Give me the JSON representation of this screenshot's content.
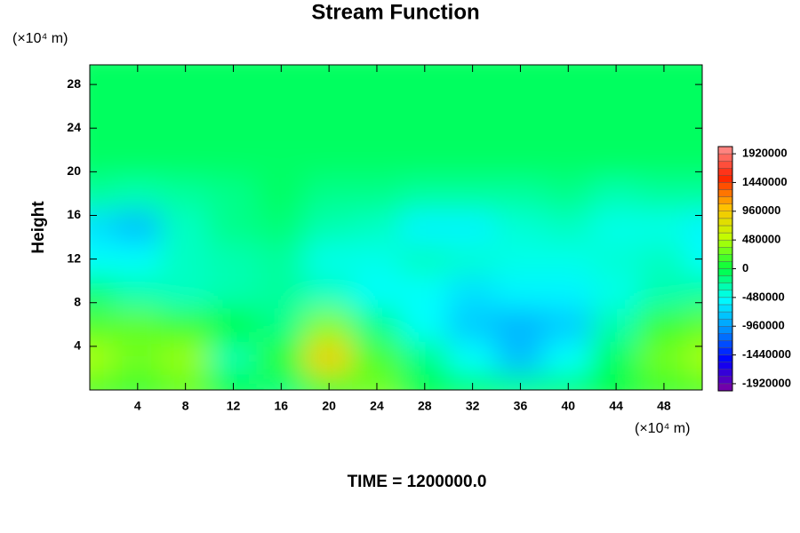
{
  "chart_data": {
    "type": "contour",
    "title": "Stream Function",
    "ylabel": "Height",
    "y_unit": "(×10⁴ m)",
    "x_unit": "(×10⁴ m)",
    "annotation": "TIME = 1200000.0",
    "xlim": [
      0,
      51.2
    ],
    "ylim": [
      0,
      29.8
    ],
    "xticks": [
      4,
      8,
      12,
      16,
      20,
      24,
      28,
      32,
      36,
      40,
      44,
      48
    ],
    "yticks": [
      4,
      8,
      12,
      16,
      20,
      24,
      28
    ],
    "x": [
      0,
      4,
      8,
      12,
      16,
      20,
      24,
      28,
      32,
      36,
      40,
      44,
      48,
      52
    ],
    "y": [
      0,
      3,
      6,
      9,
      12,
      15,
      18,
      21,
      24,
      27,
      30
    ],
    "z": [
      [
        200000,
        150000,
        250000,
        0,
        -150000,
        100000,
        300000,
        0,
        -100000,
        -200000,
        -150000,
        0,
        150000,
        200000
      ],
      [
        450000,
        300000,
        400000,
        -300000,
        100000,
        900000,
        200000,
        -200000,
        -500000,
        -800000,
        -500000,
        -100000,
        300000,
        450000
      ],
      [
        200000,
        250000,
        150000,
        0,
        -200000,
        350000,
        -200000,
        -500000,
        -750000,
        -850000,
        -750000,
        -300000,
        150000,
        250000
      ],
      [
        -150000,
        -300000,
        -350000,
        -300000,
        -250000,
        -350000,
        -500000,
        -500000,
        -650000,
        -550000,
        -550000,
        -450000,
        -300000,
        -250000
      ],
      [
        -500000,
        -500000,
        -350000,
        -300000,
        -250000,
        -450000,
        -450000,
        -350000,
        -400000,
        -450000,
        -450000,
        -400000,
        -350000,
        -500000
      ],
      [
        -650000,
        -800000,
        -350000,
        -200000,
        -150000,
        -300000,
        -350000,
        -550000,
        -550000,
        -400000,
        -350000,
        -450000,
        -450000,
        -550000
      ],
      [
        -250000,
        -300000,
        -250000,
        -200000,
        -100000,
        -200000,
        -200000,
        -250000,
        -250000,
        -250000,
        -200000,
        -300000,
        -250000,
        -250000
      ],
      [
        -100000,
        -100000,
        -100000,
        -100000,
        -100000,
        -100000,
        -100000,
        -100000,
        -100000,
        -100000,
        -100000,
        -100000,
        -100000,
        -100000
      ],
      [
        -80000,
        -80000,
        -80000,
        -80000,
        -80000,
        -80000,
        -80000,
        -80000,
        -80000,
        -80000,
        -80000,
        -80000,
        -80000,
        -80000
      ],
      [
        -80000,
        -80000,
        -80000,
        -80000,
        -80000,
        -80000,
        -80000,
        -80000,
        -80000,
        -80000,
        -80000,
        -80000,
        -80000,
        -80000
      ],
      [
        -80000,
        -80000,
        -80000,
        -80000,
        -80000,
        -80000,
        -80000,
        -80000,
        -80000,
        -80000,
        -80000,
        -80000,
        -80000,
        -80000
      ]
    ],
    "clim": [
      -2040000,
      2040000
    ],
    "cticks": [
      1920000,
      1440000,
      960000,
      480000,
      0,
      -480000,
      -960000,
      -1440000,
      -1920000
    ],
    "colormap": [
      "#8000a0",
      "#0000ff",
      "#0090ff",
      "#00ffff",
      "#00ff40",
      "#c0ff00",
      "#ffc000",
      "#ff2000",
      "#ff9090"
    ]
  }
}
